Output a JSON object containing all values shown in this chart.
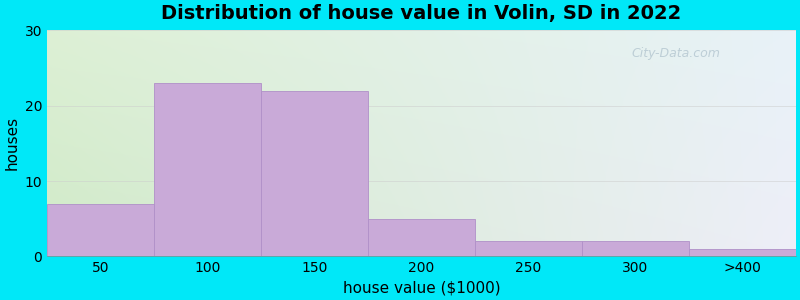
{
  "title": "Distribution of house value in Volin, SD in 2022",
  "xlabel": "house value ($1000)",
  "ylabel": "houses",
  "bar_labels": [
    "50",
    "100",
    "150",
    "200",
    "250",
    "300",
    ">400"
  ],
  "bar_values": [
    7,
    23,
    22,
    5,
    2,
    2,
    1
  ],
  "bar_color": "#c9aad8",
  "bar_edgecolor": "#b090c8",
  "ylim": [
    0,
    30
  ],
  "yticks": [
    0,
    10,
    20,
    30
  ],
  "background_outer": "#00e8f8",
  "title_fontsize": 14,
  "axis_fontsize": 11,
  "tick_fontsize": 10,
  "bar_width": 1.0,
  "grad_topleft": "#ddf0d5",
  "grad_topright": "#e8f0f8",
  "grad_bottomleft": "#c8e8c0",
  "grad_bottomright": "#e8e8f8",
  "watermark_color": "#a8bcc8",
  "watermark_alpha": 0.65
}
